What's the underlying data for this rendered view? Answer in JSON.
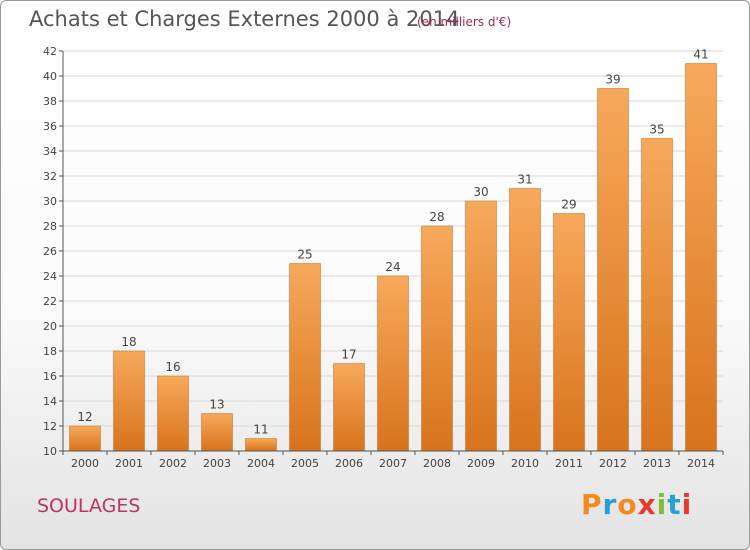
{
  "header": {
    "title": "Achats et Charges Externes 2000 à 2014",
    "subtitle": "(en milliers d'€)"
  },
  "footer": {
    "place": "SOULAGES",
    "logo_text": "Proxiti",
    "logo_colors": [
      "#f28a1e",
      "#2a9fd6",
      "#f28a1e",
      "#e63a2e",
      "#7cbf3a",
      "#2a9fd6",
      "#e63a2e"
    ]
  },
  "colors": {
    "bar_light": "#f7a95b",
    "bar_dark": "#d8731c",
    "axis": "#555555",
    "grid": "#d8d8d8"
  },
  "chart_data": {
    "type": "bar",
    "categories": [
      "2000",
      "2001",
      "2002",
      "2003",
      "2004",
      "2005",
      "2006",
      "2007",
      "2008",
      "2009",
      "2010",
      "2011",
      "2012",
      "2013",
      "2014"
    ],
    "values": [
      12,
      18,
      16,
      13,
      11,
      25,
      17,
      24,
      28,
      30,
      31,
      29,
      39,
      35,
      41
    ],
    "ylim": [
      10,
      42
    ],
    "yticks": [
      10,
      12,
      14,
      16,
      18,
      20,
      22,
      24,
      26,
      28,
      30,
      32,
      34,
      36,
      38,
      40,
      42
    ],
    "grid": true,
    "xlabel": "",
    "ylabel": ""
  }
}
